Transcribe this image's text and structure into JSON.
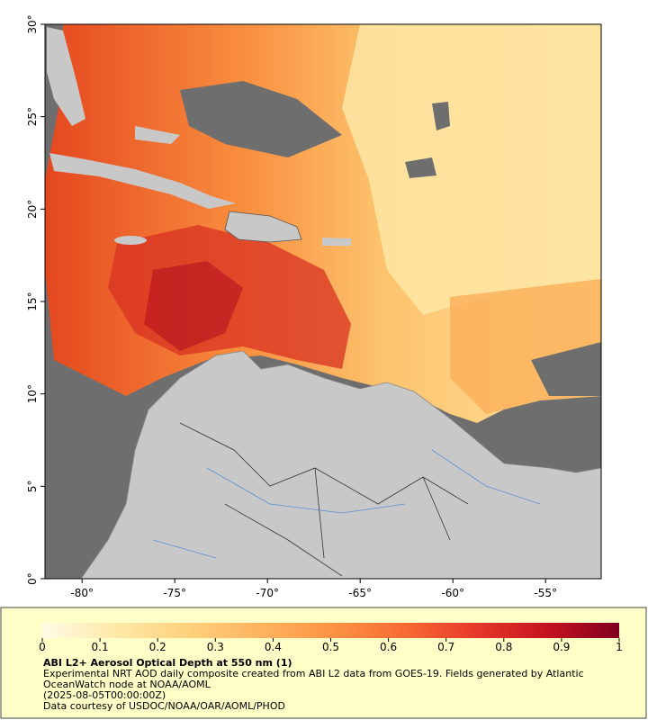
{
  "map": {
    "xlim": [
      -82,
      -52
    ],
    "ylim": [
      0,
      30
    ],
    "xticks": [
      {
        "value": -80,
        "label": "-80°"
      },
      {
        "value": -75,
        "label": "-75°"
      },
      {
        "value": -70,
        "label": "-70°"
      },
      {
        "value": -65,
        "label": "-65°"
      },
      {
        "value": -60,
        "label": "-60°"
      },
      {
        "value": -55,
        "label": "-55°"
      }
    ],
    "yticks": [
      {
        "value": 0,
        "label": "0°"
      },
      {
        "value": 5,
        "label": "5°"
      },
      {
        "value": 10,
        "label": "10°"
      },
      {
        "value": 15,
        "label": "15°"
      },
      {
        "value": 20,
        "label": "20°"
      },
      {
        "value": 25,
        "label": "25°"
      },
      {
        "value": 30,
        "label": "30°"
      }
    ]
  },
  "colorbar": {
    "lim": [
      0,
      1
    ],
    "ticks": [
      0,
      0.1,
      0.2,
      0.3,
      0.4,
      0.5,
      0.6,
      0.7,
      0.8,
      0.9,
      1
    ],
    "colors": [
      "#fffbe6",
      "#fee9a8",
      "#fed27e",
      "#fdb45e",
      "#fc9444",
      "#f86c34",
      "#e7392a",
      "#c5131f",
      "#80001f"
    ]
  },
  "caption": {
    "title": "ABI L2+ Aerosol Optical Depth at 550 nm (1)",
    "description": "Experimental NRT AOD daily composite created from ABI L2 data from GOES-19. Fields generated by Atlantic OceanWatch node at NOAA/AOML",
    "timestamp": "(2025-08-05T00:00:00Z)",
    "credit": "Data courtesy of USDOC/NOAA/OAR/AOML/PHOD"
  }
}
